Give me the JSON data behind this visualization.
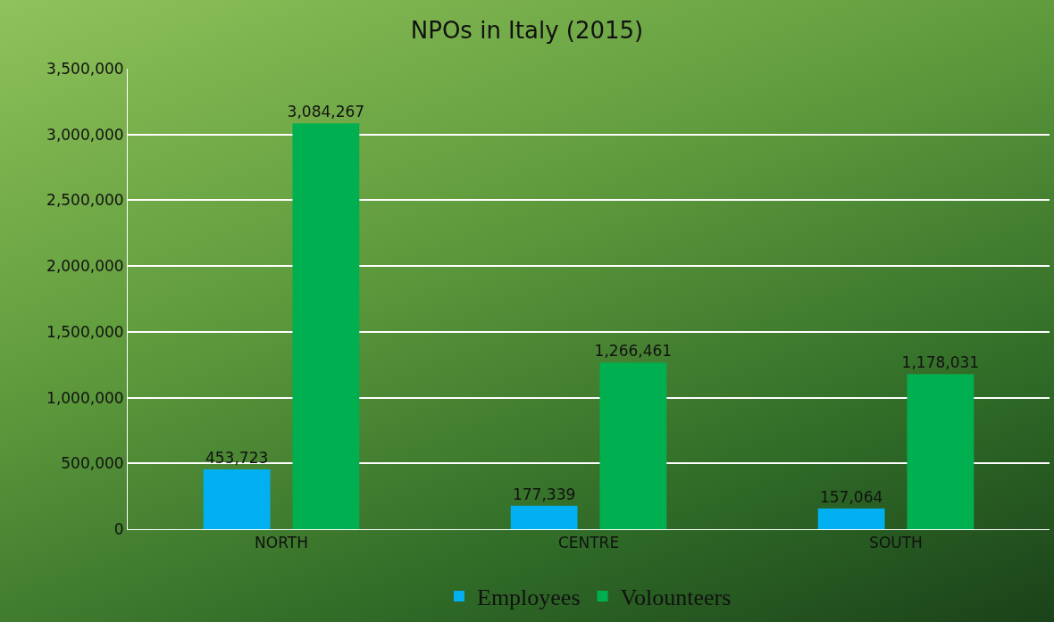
{
  "chart_data": {
    "type": "bar",
    "title": "NPOs in Italy (2015)",
    "categories": [
      "NORTH",
      "CENTRE",
      "SOUTH"
    ],
    "series": [
      {
        "name": "Employees",
        "color": "#00b0f0",
        "values": [
          453723,
          177339,
          157064
        ],
        "value_labels": [
          "453,723",
          "177,339",
          "157,064"
        ]
      },
      {
        "name": "Volounteers",
        "color": "#00b050",
        "values": [
          3084267,
          1266461,
          1178031
        ],
        "value_labels": [
          "3,084,267",
          "1,266,461",
          "1,178,031"
        ]
      }
    ],
    "ylim": [
      0,
      3500000
    ],
    "yticks": [
      {
        "value": 0,
        "label": "0"
      },
      {
        "value": 500000,
        "label": "500,000"
      },
      {
        "value": 1000000,
        "label": "1,000,000"
      },
      {
        "value": 1500000,
        "label": "1,500,000"
      },
      {
        "value": 2000000,
        "label": "2,000,000"
      },
      {
        "value": 2500000,
        "label": "2,500,000"
      },
      {
        "value": 3000000,
        "label": "3,000,000"
      },
      {
        "value": 3500000,
        "label": "3,500,000"
      }
    ],
    "grid": "y",
    "legend": "bottom"
  }
}
